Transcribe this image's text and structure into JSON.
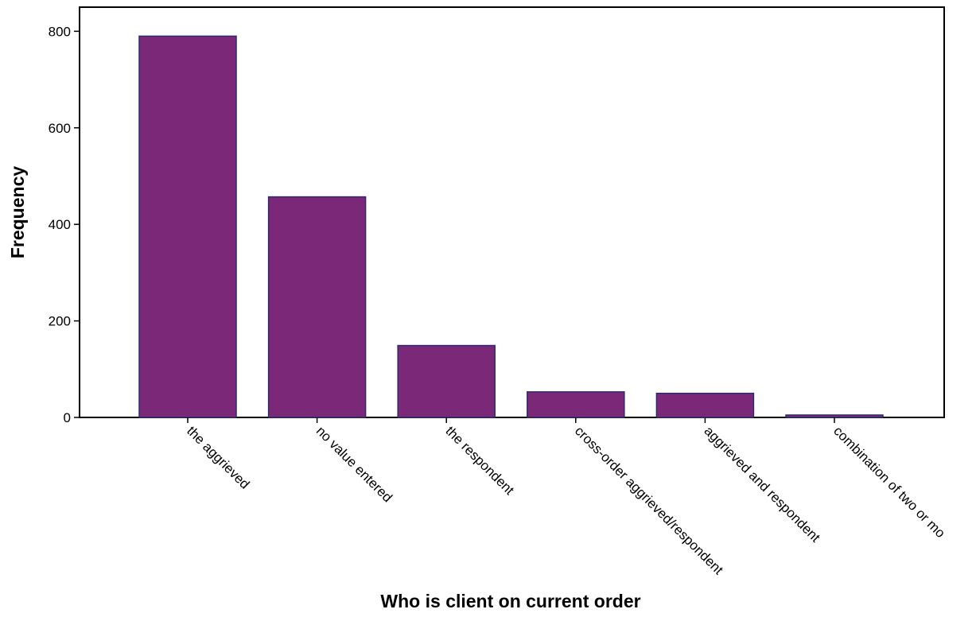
{
  "chart_data": {
    "type": "bar",
    "title": "",
    "xlabel": "Who is client on current order",
    "ylabel": "Frequency",
    "categories": [
      "the aggrieved",
      "no value entered",
      "the respondent",
      "cross-order aggrieved/respondent",
      "aggrieved and respondent",
      "combination of two or mo"
    ],
    "values": [
      790,
      457,
      149,
      53,
      50,
      5
    ],
    "ylim": [
      0,
      850
    ],
    "yticks": [
      0,
      200,
      400,
      600,
      800
    ],
    "grid": false,
    "legend": "none",
    "colors": {
      "bar_fill": "#7b2878",
      "bar_stroke": "#2f2b6b",
      "axis": "#000000"
    }
  }
}
